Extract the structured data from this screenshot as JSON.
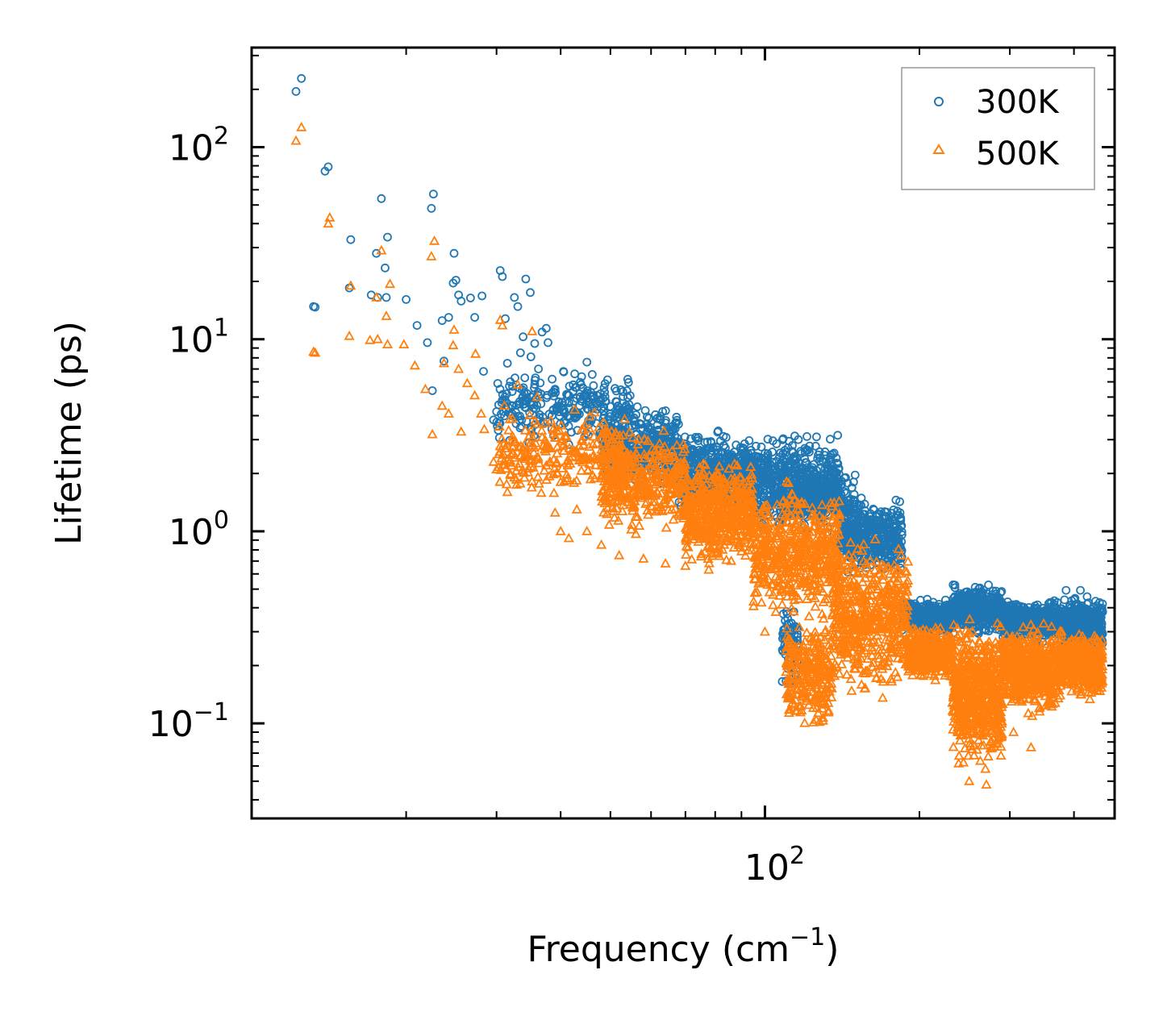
{
  "chart_data": {
    "type": "scatter",
    "title": "",
    "xlabel": "Frequency (cm",
    "xlabel_sup": "−1",
    "xlabel_close": ")",
    "ylabel": "Lifetime (ps)",
    "xscale": "log",
    "yscale": "log",
    "xlim": [
      10,
      480
    ],
    "ylim": [
      0.032,
      330
    ],
    "x_ticks": [
      {
        "base": "10",
        "exp": "2",
        "value": 100
      }
    ],
    "y_ticks": [
      {
        "base": "10",
        "exp": "−1",
        "value": 0.1
      },
      {
        "base": "10",
        "exp": "0",
        "value": 1
      },
      {
        "base": "10",
        "exp": "1",
        "value": 10
      },
      {
        "base": "10",
        "exp": "2",
        "value": 100
      }
    ],
    "legend_position": "top-right",
    "series": [
      {
        "name": "300K",
        "color": "#1f77b4",
        "marker": "circle",
        "points": [
          [
            12.2,
            195
          ],
          [
            12.5,
            228
          ],
          [
            13.9,
            75
          ],
          [
            14.1,
            79
          ],
          [
            13.2,
            14.8
          ],
          [
            13.3,
            14.7
          ],
          [
            15.6,
            33
          ],
          [
            15.5,
            18.5
          ],
          [
            17.1,
            17
          ],
          [
            17.9,
            54
          ],
          [
            17.5,
            28
          ],
          [
            17.6,
            16.5
          ],
          [
            18.4,
            34
          ],
          [
            18.3,
            16.5
          ],
          [
            18.2,
            23.5
          ],
          [
            20.0,
            16.1
          ],
          [
            21.0,
            11.8
          ],
          [
            22.0,
            9.6
          ],
          [
            22.4,
            48
          ],
          [
            22.6,
            57
          ],
          [
            22.5,
            5.4
          ],
          [
            23.5,
            12.5
          ],
          [
            23.7,
            7.7
          ],
          [
            24.2,
            13
          ],
          [
            24.8,
            28
          ],
          [
            24.7,
            19.6
          ],
          [
            25.0,
            20.3
          ],
          [
            25.3,
            17
          ],
          [
            25.6,
            15.8
          ],
          [
            26.7,
            16.4
          ],
          [
            27.2,
            13
          ],
          [
            28.1,
            16.8
          ],
          [
            28.3,
            6.8
          ],
          [
            29.6,
            3.8
          ],
          [
            30.0,
            4.2
          ],
          [
            30.5,
            22.8
          ],
          [
            30.8,
            21.2
          ],
          [
            31.2,
            12.8
          ],
          [
            31.5,
            7.5
          ],
          [
            32.5,
            16.5
          ],
          [
            33.0,
            14.8
          ],
          [
            34.2,
            20.6
          ],
          [
            34.9,
            17.5
          ],
          [
            33.8,
            10.3
          ],
          [
            35.6,
            9.5
          ],
          [
            36.8,
            10.9
          ],
          [
            37.5,
            11.4
          ],
          [
            33.4,
            8.5
          ],
          [
            35.0,
            8.1
          ],
          [
            36.2,
            7.0
          ],
          [
            39.0,
            5.5
          ],
          [
            40.5,
            6.8
          ],
          [
            41.5,
            5.1
          ],
          [
            42.6,
            6.6
          ],
          [
            45.0,
            7.6
          ],
          [
            37.8,
            9.6
          ],
          [
            38.5,
            6.2
          ],
          [
            43.8,
            5.8
          ],
          [
            46.5,
            4.9
          ],
          [
            47.8,
            5.2
          ]
        ],
        "bands": [
          {
            "x0": 30,
            "x1": 55,
            "ylo": 2.6,
            "yhi": 7.5,
            "n": 260
          },
          {
            "x0": 48,
            "x1": 68,
            "ylo": 1.6,
            "yhi": 4.8,
            "n": 380
          },
          {
            "x0": 68,
            "x1": 95,
            "ylo": 1.1,
            "yhi": 3.6,
            "n": 500
          },
          {
            "x0": 95,
            "x1": 140,
            "ylo": 0.9,
            "yhi": 3.6,
            "n": 520
          },
          {
            "x0": 105,
            "x1": 150,
            "ylo": 1.0,
            "yhi": 2.3,
            "n": 200
          },
          {
            "x0": 140,
            "x1": 185,
            "ylo": 0.55,
            "yhi": 1.6,
            "n": 420
          },
          {
            "x0": 185,
            "x1": 232,
            "ylo": 0.28,
            "yhi": 0.46,
            "n": 380
          },
          {
            "x0": 232,
            "x1": 290,
            "ylo": 0.28,
            "yhi": 0.55,
            "n": 460
          },
          {
            "x0": 290,
            "x1": 375,
            "ylo": 0.26,
            "yhi": 0.45,
            "n": 520
          },
          {
            "x0": 375,
            "x1": 455,
            "ylo": 0.22,
            "yhi": 0.5,
            "n": 420
          },
          {
            "x0": 108,
            "x1": 116,
            "ylo": 0.14,
            "yhi": 0.5,
            "n": 70
          }
        ]
      },
      {
        "name": "500K",
        "color": "#ff7f0e",
        "marker": "triangle",
        "points": [
          [
            12.2,
            108
          ],
          [
            12.5,
            127
          ],
          [
            14.1,
            40
          ],
          [
            14.2,
            43
          ],
          [
            13.2,
            8.6
          ],
          [
            13.3,
            8.5
          ],
          [
            15.6,
            19
          ],
          [
            15.5,
            10.4
          ],
          [
            17.0,
            9.9
          ],
          [
            17.5,
            16.5
          ],
          [
            17.6,
            10
          ],
          [
            17.9,
            29
          ],
          [
            18.3,
            13.2
          ],
          [
            18.6,
            19.4
          ],
          [
            18.4,
            9.4
          ],
          [
            19.8,
            9.4
          ],
          [
            20.8,
            7.3
          ],
          [
            21.8,
            5.5
          ],
          [
            22.4,
            27
          ],
          [
            22.7,
            32.5
          ],
          [
            22.5,
            3.2
          ],
          [
            23.5,
            4.5
          ],
          [
            23.7,
            7.5
          ],
          [
            24.2,
            4.1
          ],
          [
            24.8,
            11.2
          ],
          [
            24.7,
            9.3
          ],
          [
            25.3,
            7.0
          ],
          [
            25.6,
            3.3
          ],
          [
            26.3,
            5.9
          ],
          [
            27.3,
            8.4
          ],
          [
            27.2,
            5.1
          ],
          [
            28.0,
            4.1
          ],
          [
            28.4,
            3.4
          ],
          [
            29.6,
            2.3
          ],
          [
            30.0,
            2.1
          ],
          [
            30.5,
            12.6
          ],
          [
            30.8,
            11.8
          ],
          [
            31.5,
            1.6
          ],
          [
            32.0,
            2.5
          ],
          [
            33.0,
            5.8
          ],
          [
            34.0,
            1.9
          ],
          [
            35.2,
            11
          ],
          [
            36.0,
            5.0
          ],
          [
            37.5,
            2.2
          ],
          [
            39.0,
            1.25
          ],
          [
            40.0,
            1.0
          ],
          [
            41.5,
            0.92
          ],
          [
            43.0,
            1.3
          ],
          [
            45.0,
            1.0
          ],
          [
            48.0,
            0.85
          ],
          [
            52.0,
            0.75
          ],
          [
            58.0,
            0.72
          ],
          [
            64.0,
            0.68
          ],
          [
            70.0,
            0.66
          ],
          [
            100.0,
            0.3
          ],
          [
            105.0,
            0.38
          ],
          [
            250.0,
            0.05
          ],
          [
            270.0,
            0.048
          ],
          [
            330.0,
            0.075
          ],
          [
            305.0,
            0.09
          ]
        ],
        "bands": [
          {
            "x0": 30,
            "x1": 55,
            "ylo": 1.4,
            "yhi": 4.8,
            "n": 260
          },
          {
            "x0": 48,
            "x1": 70,
            "ylo": 0.9,
            "yhi": 3.6,
            "n": 380
          },
          {
            "x0": 70,
            "x1": 95,
            "ylo": 0.6,
            "yhi": 2.6,
            "n": 520
          },
          {
            "x0": 95,
            "x1": 140,
            "ylo": 0.3,
            "yhi": 2.0,
            "n": 520
          },
          {
            "x0": 110,
            "x1": 135,
            "ylo": 0.085,
            "yhi": 0.4,
            "n": 260
          },
          {
            "x0": 135,
            "x1": 190,
            "ylo": 0.12,
            "yhi": 1.1,
            "n": 520
          },
          {
            "x0": 190,
            "x1": 232,
            "ylo": 0.16,
            "yhi": 0.34,
            "n": 380
          },
          {
            "x0": 232,
            "x1": 290,
            "ylo": 0.05,
            "yhi": 0.4,
            "n": 560
          },
          {
            "x0": 290,
            "x1": 375,
            "ylo": 0.1,
            "yhi": 0.36,
            "n": 520
          },
          {
            "x0": 375,
            "x1": 455,
            "ylo": 0.13,
            "yhi": 0.32,
            "n": 420
          }
        ]
      }
    ]
  }
}
